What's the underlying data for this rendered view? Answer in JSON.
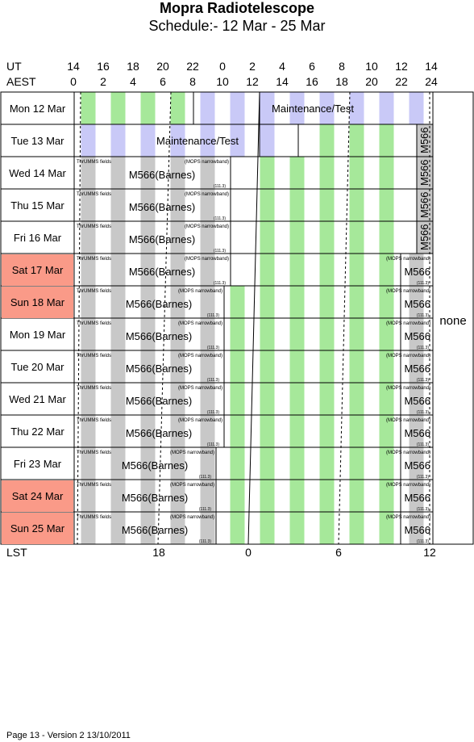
{
  "title": "Mopra Radiotelescope",
  "subtitle": "Schedule:- 12 Mar - 25 Mar",
  "axis": {
    "ut_label": "UT",
    "aest_label": "AEST",
    "lst_label": "LST",
    "ut_ticks": [
      "14",
      "16",
      "18",
      "20",
      "22",
      "0",
      "2",
      "4",
      "6",
      "8",
      "10",
      "12",
      "14"
    ],
    "aest_ticks": [
      "0",
      "2",
      "4",
      "6",
      "8",
      "10",
      "12",
      "14",
      "16",
      "18",
      "20",
      "22",
      "24"
    ],
    "lst_ticks": [
      "18",
      "0",
      "6",
      "12"
    ]
  },
  "days": [
    {
      "label": "Mon  12 Mar",
      "weekend": false
    },
    {
      "label": "Tue  13 Mar",
      "weekend": false
    },
    {
      "label": "Wed  14 Mar",
      "weekend": false
    },
    {
      "label": "Thu  15 Mar",
      "weekend": false
    },
    {
      "label": "Fri   16 Mar",
      "weekend": false
    },
    {
      "label": "Sat  17 Mar",
      "weekend": true
    },
    {
      "label": "Sun  18 Mar",
      "weekend": true
    },
    {
      "label": "Mon  19 Mar",
      "weekend": false
    },
    {
      "label": "Tue  20 Mar",
      "weekend": false
    },
    {
      "label": "Wed  21 Mar",
      "weekend": false
    },
    {
      "label": "Thu  22 Mar",
      "weekend": false
    },
    {
      "label": "Fri   23 Mar",
      "weekend": false
    },
    {
      "label": "Sat  24 Mar",
      "weekend": true
    },
    {
      "label": "Sun  25 Mar",
      "weekend": true
    }
  ],
  "labels": {
    "maintenance": "Maintenance/Test",
    "main_obs": "M566(Barnes)",
    "thrumms": "ThrUMMS fields",
    "mops": "(MOPS narrowband)",
    "freq": "(111.3)",
    "m566": "M566",
    "none": "none"
  },
  "colors": {
    "green": "#a6e89a",
    "grey": "#c8c8c8",
    "lavender": "#c9c9f7",
    "weekend": "#fa9a88"
  },
  "footer": "Page 13 - Version 2  13/10/2011"
}
